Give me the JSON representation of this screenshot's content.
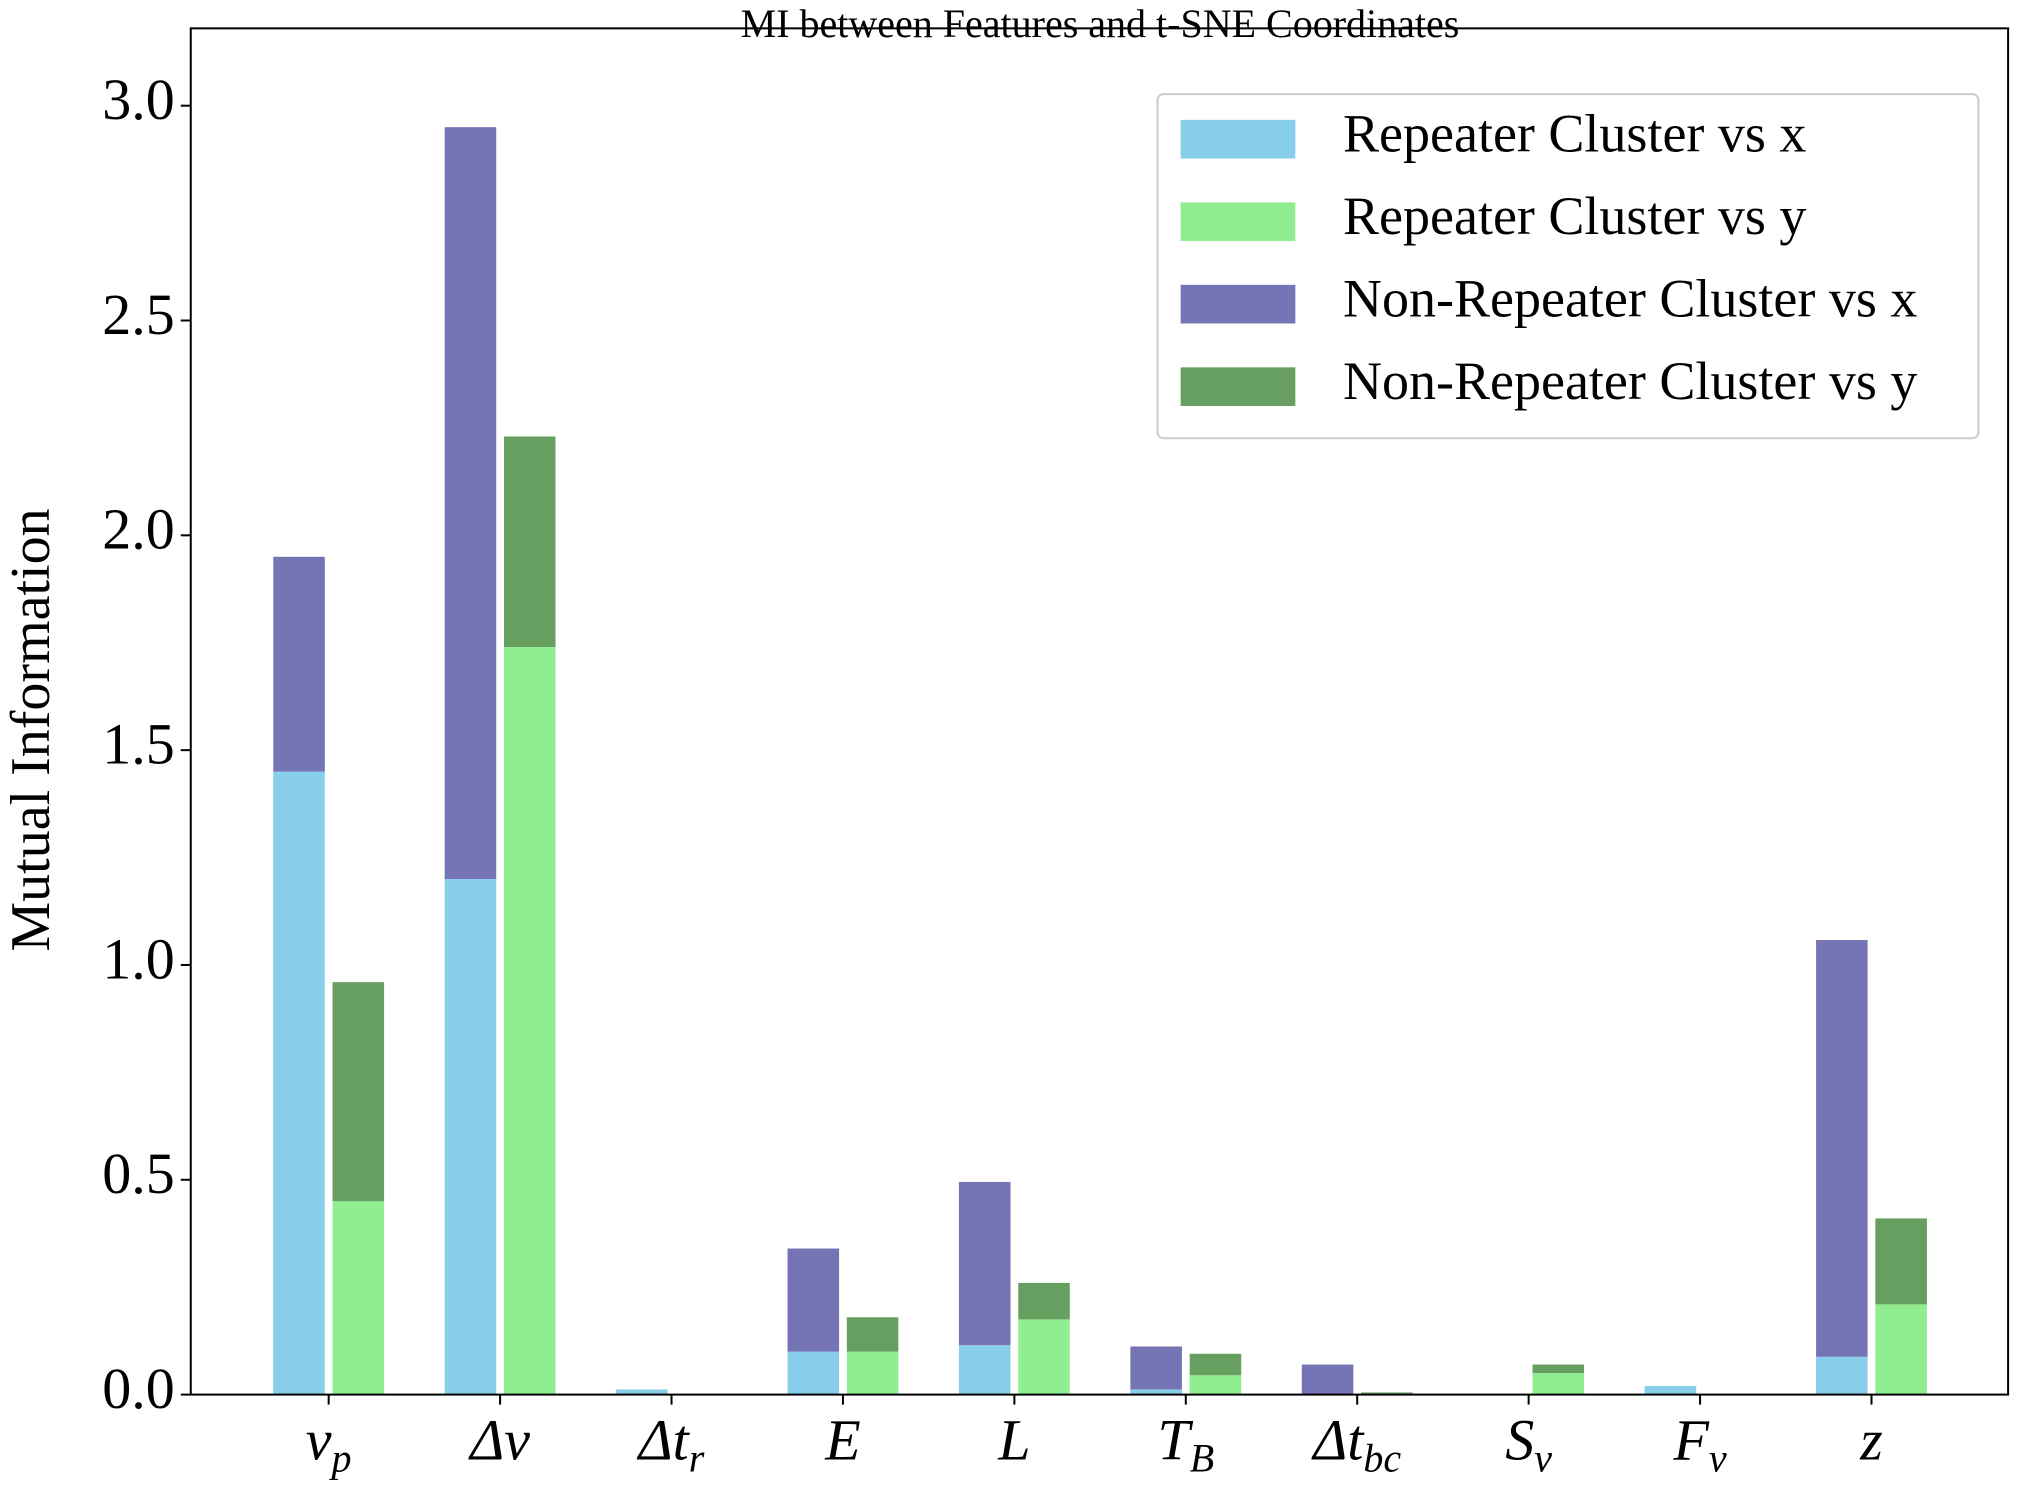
{
  "chart_data": {
    "type": "bar",
    "stacked": true,
    "title": "MI between Features and t-SNE Coordinates",
    "y_label": "Mutual Information",
    "categories": [
      {
        "base": "ν",
        "sub": "p"
      },
      {
        "base": "Δν"
      },
      {
        "base": "Δt",
        "sub": "r"
      },
      {
        "base": "E"
      },
      {
        "base": "L"
      },
      {
        "base": "T",
        "sub": "B"
      },
      {
        "base": "Δt",
        "sub": "bc"
      },
      {
        "base": "S",
        "sub": "ν"
      },
      {
        "base": "F",
        "sub": "ν"
      },
      {
        "base": "z"
      }
    ],
    "series": [
      {
        "name": "Repeater Cluster vs x",
        "color": "#87ceeb",
        "stack": "x",
        "values": [
          1.45,
          1.2,
          0.012,
          0.1,
          0.115,
          0.012,
          0,
          0,
          0.02,
          0.088
        ]
      },
      {
        "name": "Repeater Cluster vs y",
        "color": "#90ee90",
        "stack": "y",
        "values": [
          0.45,
          1.74,
          0,
          0.1,
          0.175,
          0.045,
          0,
          0.05,
          0,
          0.21
        ]
      },
      {
        "name": "Non-Repeater Cluster vs x",
        "color": "#7575b6",
        "stack": "x",
        "values": [
          0.5,
          1.75,
          0,
          0.24,
          0.38,
          0.1,
          0.07,
          0,
          0,
          0.97
        ]
      },
      {
        "name": "Non-Repeater Cluster vs y",
        "color": "#669f5f",
        "stack": "y",
        "values": [
          0.51,
          0.49,
          0,
          0.08,
          0.085,
          0.05,
          0.005,
          0.02,
          0,
          0.2
        ]
      }
    ],
    "ylim": [
      0,
      3.18
    ],
    "yticks": [
      {
        "value": 0,
        "label": "0.0"
      },
      {
        "value": 0.5,
        "label": "0.5"
      },
      {
        "value": 1,
        "label": "1.0"
      },
      {
        "value": 1.5,
        "label": "1.5"
      },
      {
        "value": 2,
        "label": "2.0"
      },
      {
        "value": 2.5,
        "label": "2.5"
      },
      {
        "value": 3,
        "label": "3.0"
      }
    ],
    "legend": "upper right",
    "grid": false
  }
}
